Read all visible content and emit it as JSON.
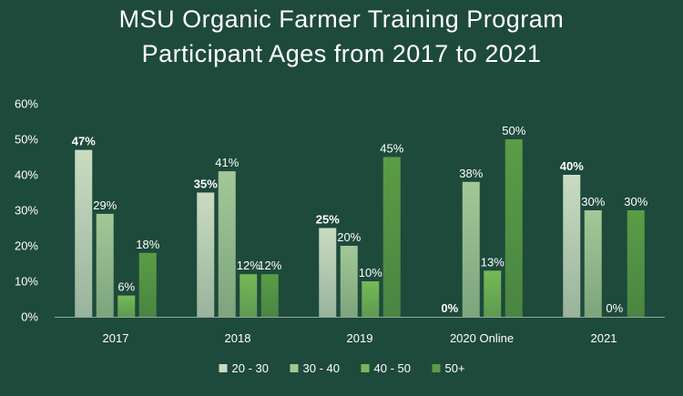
{
  "chart_data": {
    "type": "bar",
    "title": [
      "MSU Organic Farmer Training Program",
      "Participant Ages from 2017 to 2021"
    ],
    "categories": [
      "2017",
      "2018",
      "2019",
      "2020 Online",
      "2021"
    ],
    "series": [
      {
        "name": "20 - 30",
        "values": [
          47,
          35,
          25,
          0,
          40
        ],
        "labels": [
          "47%",
          "35%",
          "25%",
          "0%",
          "40%"
        ],
        "color": "#c9dcc2",
        "bold_labels": true
      },
      {
        "name": "30 - 40",
        "values": [
          29,
          41,
          20,
          38,
          30
        ],
        "labels": [
          "29%",
          "41%",
          "20%",
          "38%",
          "30%"
        ],
        "color": "#a3c797",
        "bold_labels": false
      },
      {
        "name": "40 - 50",
        "values": [
          6,
          12,
          10,
          13,
          0
        ],
        "labels": [
          "6%",
          "12%",
          "10%",
          "13%",
          "0%"
        ],
        "color": "#77b957",
        "bold_labels": false
      },
      {
        "name": "50+",
        "values": [
          18,
          12,
          45,
          50,
          30
        ],
        "labels": [
          "18%",
          "12%",
          "45%",
          "50%",
          "30%"
        ],
        "color": "#5b9c45",
        "bold_labels": false
      }
    ],
    "y_ticks": [
      "0%",
      "10%",
      "20%",
      "30%",
      "40%",
      "50%",
      "60%"
    ],
    "ylim": [
      0,
      60
    ],
    "grid": false,
    "legend_position": "bottom"
  }
}
